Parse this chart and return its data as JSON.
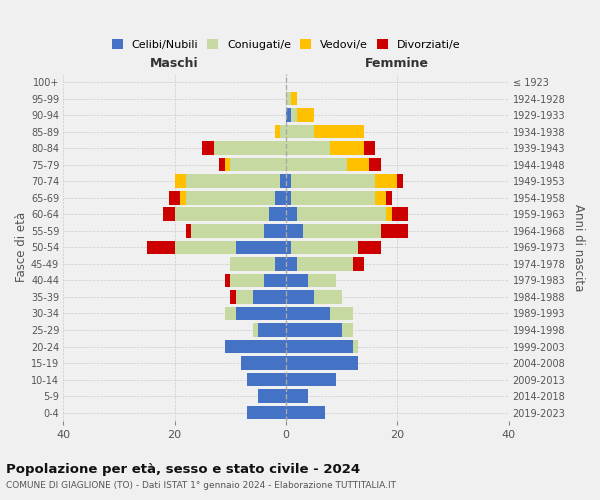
{
  "age_groups": [
    "0-4",
    "5-9",
    "10-14",
    "15-19",
    "20-24",
    "25-29",
    "30-34",
    "35-39",
    "40-44",
    "45-49",
    "50-54",
    "55-59",
    "60-64",
    "65-69",
    "70-74",
    "75-79",
    "80-84",
    "85-89",
    "90-94",
    "95-99",
    "100+"
  ],
  "birth_years": [
    "2019-2023",
    "2014-2018",
    "2009-2013",
    "2004-2008",
    "1999-2003",
    "1994-1998",
    "1989-1993",
    "1984-1988",
    "1979-1983",
    "1974-1978",
    "1969-1973",
    "1964-1968",
    "1959-1963",
    "1954-1958",
    "1949-1953",
    "1944-1948",
    "1939-1943",
    "1934-1938",
    "1929-1933",
    "1924-1928",
    "≤ 1923"
  ],
  "colors": {
    "celibe": "#4472c4",
    "coniugato": "#c5d9a0",
    "vedovo": "#ffc000",
    "divorziato": "#cc0000"
  },
  "males": {
    "celibe": [
      7,
      5,
      7,
      8,
      11,
      5,
      9,
      6,
      4,
      2,
      9,
      4,
      3,
      2,
      1,
      0,
      0,
      0,
      0,
      0,
      0
    ],
    "coniugato": [
      0,
      0,
      0,
      0,
      0,
      1,
      2,
      3,
      6,
      8,
      11,
      13,
      17,
      16,
      17,
      10,
      13,
      1,
      0,
      0,
      0
    ],
    "vedovo": [
      0,
      0,
      0,
      0,
      0,
      0,
      0,
      0,
      0,
      0,
      0,
      0,
      0,
      1,
      2,
      1,
      0,
      1,
      0,
      0,
      0
    ],
    "divorziato": [
      0,
      0,
      0,
      0,
      0,
      0,
      0,
      1,
      1,
      0,
      5,
      1,
      2,
      2,
      0,
      1,
      2,
      0,
      0,
      0,
      0
    ]
  },
  "females": {
    "nubile": [
      7,
      4,
      9,
      13,
      12,
      10,
      8,
      5,
      4,
      2,
      1,
      3,
      2,
      1,
      1,
      0,
      0,
      0,
      1,
      0,
      0
    ],
    "coniugata": [
      0,
      0,
      0,
      0,
      1,
      2,
      4,
      5,
      5,
      10,
      12,
      14,
      16,
      15,
      15,
      11,
      8,
      5,
      1,
      1,
      0
    ],
    "vedova": [
      0,
      0,
      0,
      0,
      0,
      0,
      0,
      0,
      0,
      0,
      0,
      0,
      1,
      2,
      4,
      4,
      6,
      9,
      3,
      1,
      0
    ],
    "divorziata": [
      0,
      0,
      0,
      0,
      0,
      0,
      0,
      0,
      0,
      2,
      4,
      5,
      3,
      1,
      1,
      2,
      2,
      0,
      0,
      0,
      0
    ]
  },
  "xlim": 40,
  "title": "Popolazione per età, sesso e stato civile - 2024",
  "subtitle": "COMUNE DI GIAGLIONE (TO) - Dati ISTAT 1° gennaio 2024 - Elaborazione TUTTITALIA.IT",
  "xlabel_left": "Maschi",
  "xlabel_right": "Femmine",
  "ylabel_left": "Fasce di età",
  "ylabel_right": "Anni di nascita",
  "legend_labels": [
    "Celibi/Nubili",
    "Coniugati/e",
    "Vedovi/e",
    "Divorziati/e"
  ],
  "bg_color": "#f0f0f0",
  "plot_bg": "#f0f0f0"
}
